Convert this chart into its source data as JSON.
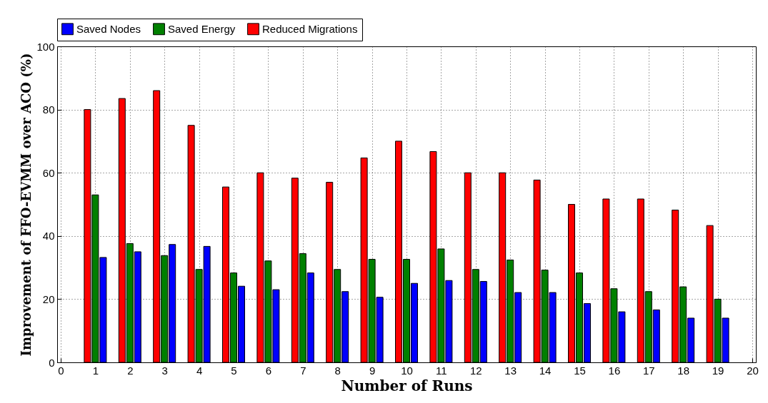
{
  "chart_data": {
    "type": "bar",
    "xlabel": "Number of Runs",
    "ylabel": "Improvement of FFO-EVMM over ACO (%)",
    "x": [
      1,
      2,
      3,
      4,
      5,
      6,
      7,
      8,
      9,
      10,
      11,
      12,
      13,
      14,
      15,
      16,
      17,
      18,
      19
    ],
    "xlim": [
      0,
      20
    ],
    "xticks": [
      0,
      1,
      2,
      3,
      4,
      5,
      6,
      7,
      8,
      9,
      10,
      11,
      12,
      13,
      14,
      15,
      16,
      17,
      18,
      19,
      20
    ],
    "ylim": [
      0,
      100
    ],
    "yticks": [
      0,
      20,
      40,
      60,
      80,
      100
    ],
    "grid": true,
    "legend": "top",
    "series": [
      {
        "name": "Saved Nodes",
        "color": "#0000ff",
        "values": [
          33.2,
          35,
          37.3,
          36.7,
          24.1,
          23,
          28.3,
          22.4,
          20.6,
          25,
          25.9,
          25.6,
          22.1,
          22.1,
          18.6,
          16,
          16.6,
          14,
          14
        ]
      },
      {
        "name": "Saved Energy",
        "color": "#008000",
        "values": [
          53,
          37.6,
          33.8,
          29.4,
          28.3,
          32.1,
          34.4,
          29.4,
          32.6,
          32.6,
          35.9,
          29.4,
          32.4,
          29.2,
          28.3,
          23.3,
          22.4,
          23.9,
          20
        ]
      },
      {
        "name": "Reduced Migrations",
        "color": "#ff0000",
        "values": [
          80,
          83.5,
          86,
          75,
          55.5,
          60,
          58.3,
          57,
          64.7,
          70,
          66.7,
          60,
          60,
          57.7,
          50,
          51.7,
          51.7,
          48.2,
          43.3
        ]
      }
    ]
  }
}
